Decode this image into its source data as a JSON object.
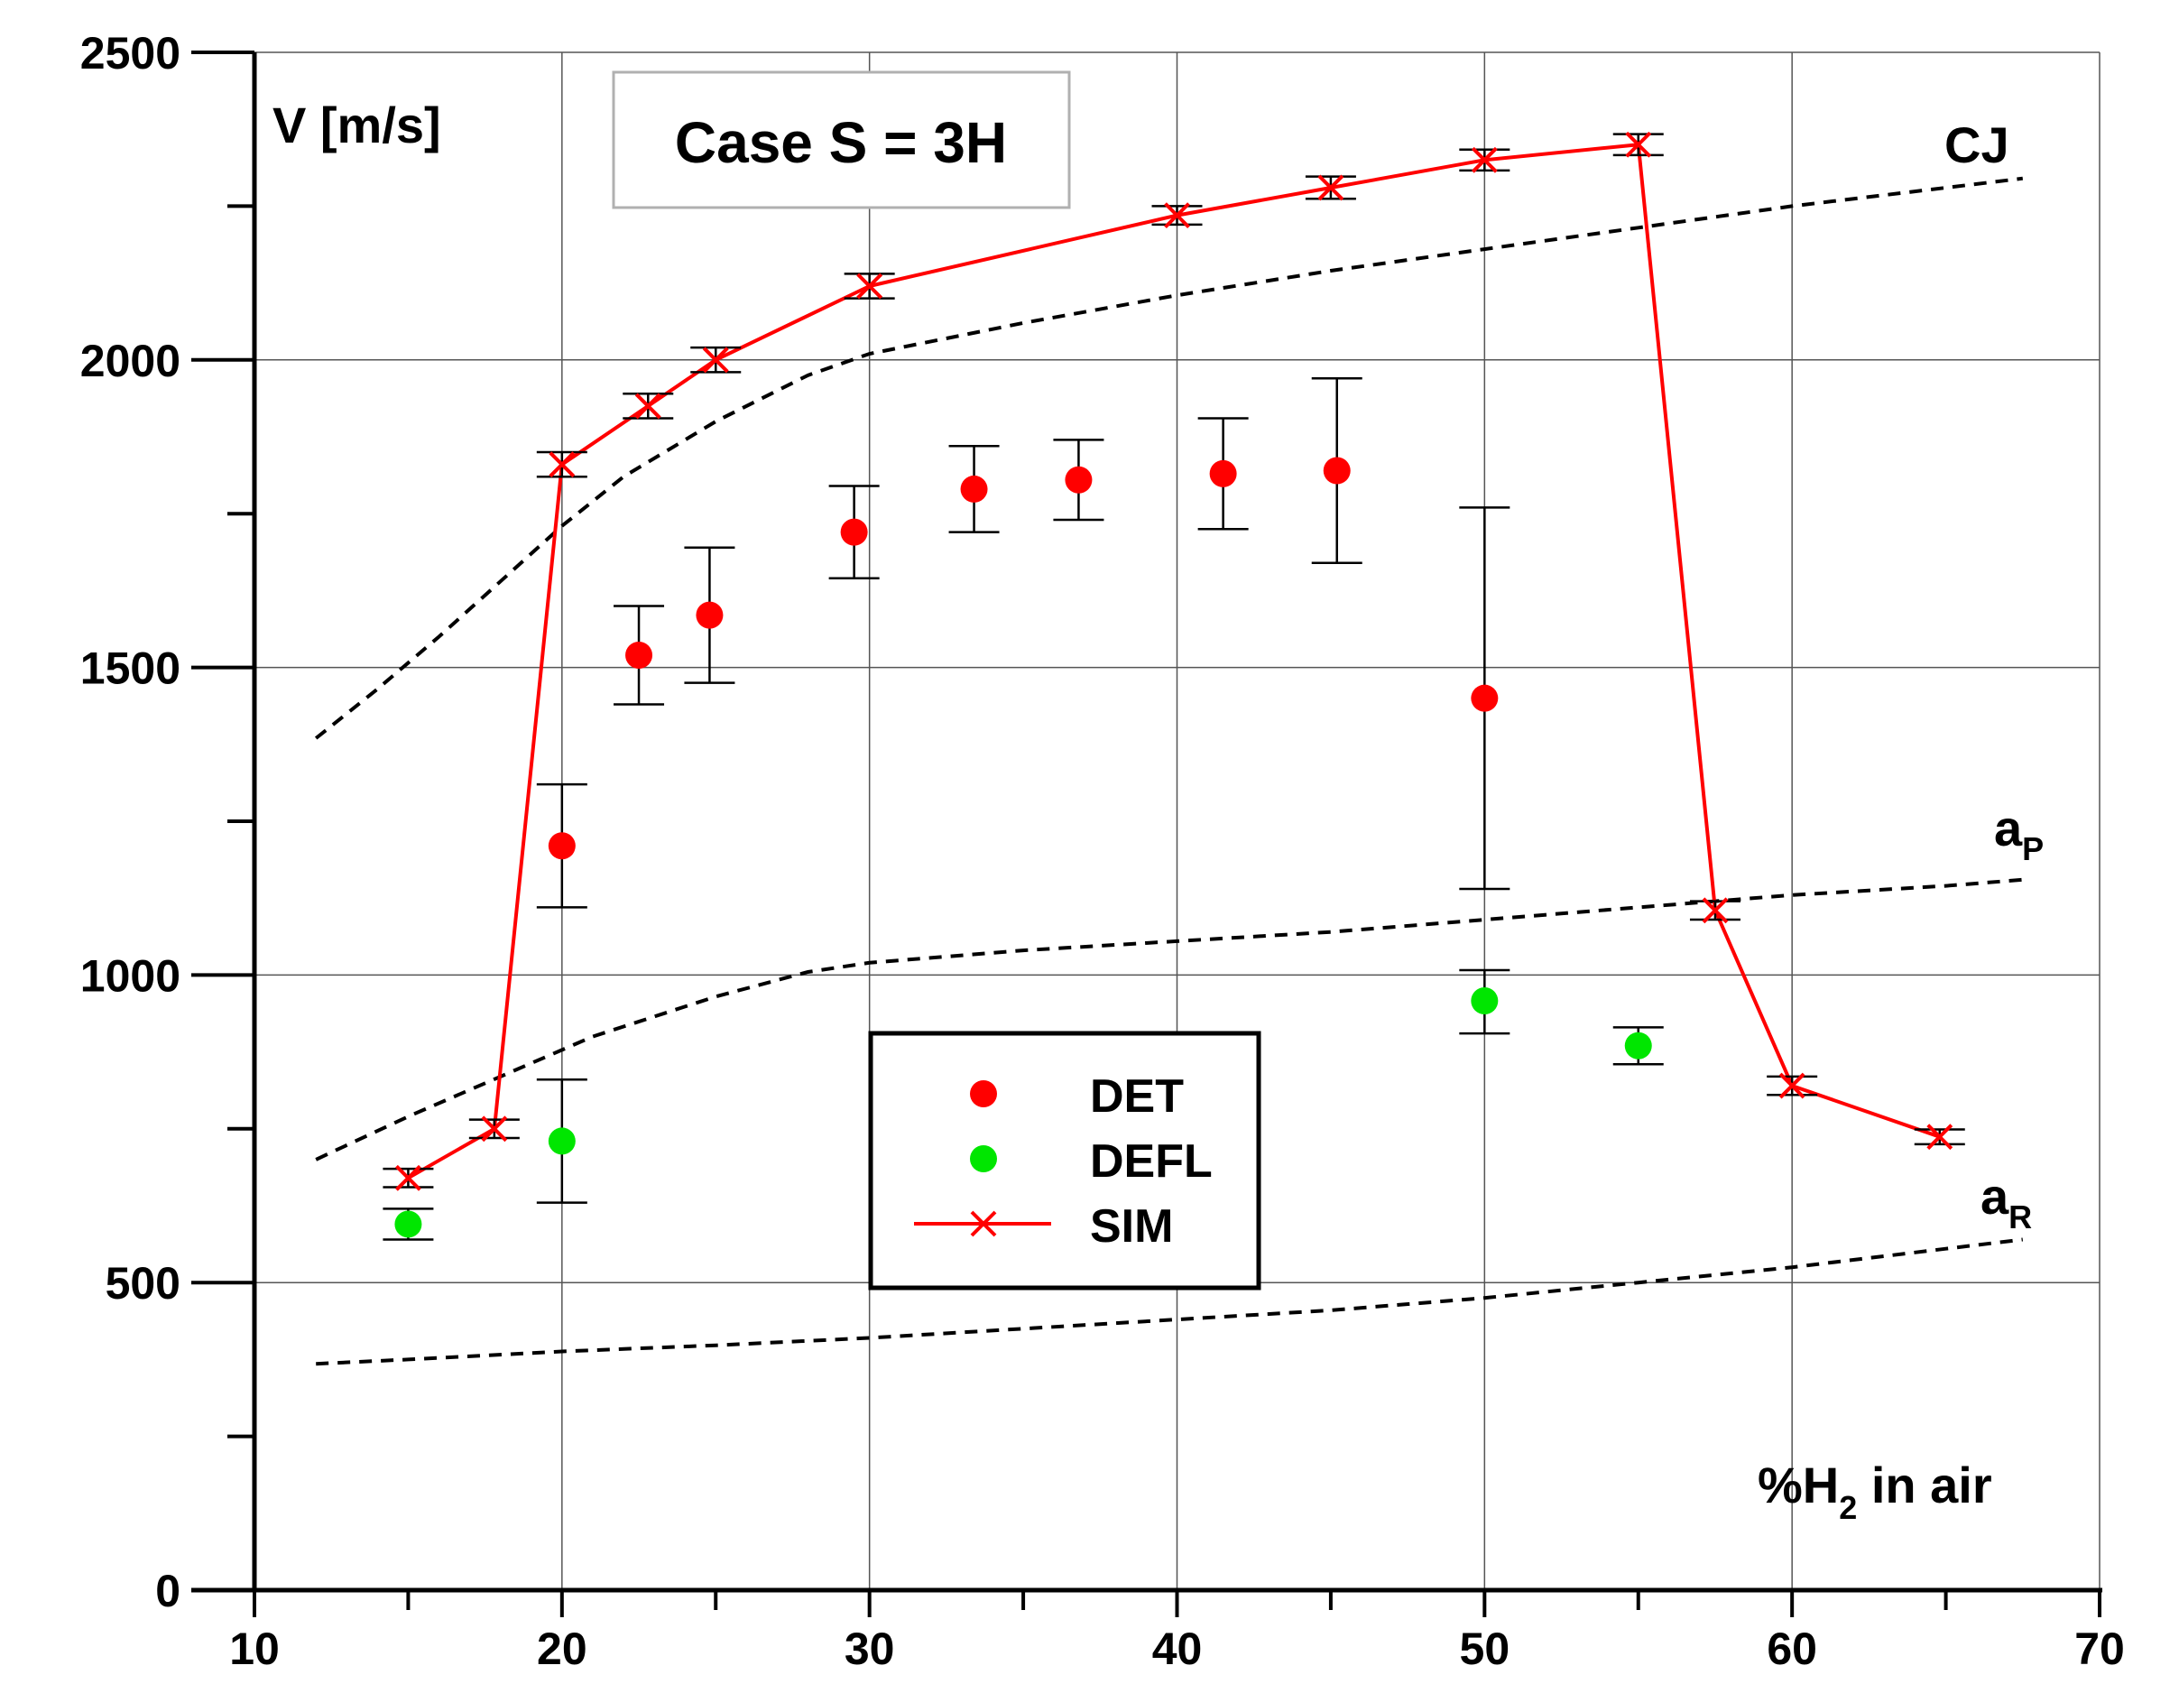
{
  "chart_data": {
    "type": "scatter",
    "title": "Case S = 3H",
    "ylabel": "V [m/s]",
    "xlabel": {
      "prefix": "%H",
      "subscript": "2",
      "suffix": " in air"
    },
    "xlim": [
      10,
      70
    ],
    "ylim": [
      0,
      2500
    ],
    "x_ticks": [
      10,
      20,
      30,
      40,
      50,
      60,
      70
    ],
    "y_ticks": [
      0,
      500,
      1000,
      1500,
      2000,
      2500
    ],
    "x_tick_labels": [
      "10",
      "20",
      "30",
      "40",
      "50",
      "60",
      "70"
    ],
    "y_tick_labels": [
      "0",
      "500",
      "1000",
      "1500",
      "2000",
      "2500"
    ],
    "grid": true,
    "colors": {
      "det": "#ff0000",
      "defl": "#00e600",
      "sim": "#ff0000",
      "reference": "#000000"
    },
    "legend": {
      "placement": "center",
      "entries": [
        {
          "label": "DET",
          "marker": "filled-circle",
          "color": "#ff0000"
        },
        {
          "label": "DEFL",
          "marker": "filled-circle",
          "color": "#00e600"
        },
        {
          "label": "SIM",
          "marker": "x-line",
          "color": "#ff0000"
        }
      ]
    },
    "series": [
      {
        "name": "DET",
        "points": [
          {
            "x": 20,
            "y": 1210,
            "low": 1110,
            "high": 1310
          },
          {
            "x": 22.5,
            "y": 1520,
            "low": 1440,
            "high": 1600
          },
          {
            "x": 24.8,
            "y": 1585,
            "low": 1475,
            "high": 1695
          },
          {
            "x": 29.5,
            "y": 1720,
            "low": 1645,
            "high": 1795
          },
          {
            "x": 33.4,
            "y": 1790,
            "low": 1720,
            "high": 1860
          },
          {
            "x": 36.8,
            "y": 1805,
            "low": 1740,
            "high": 1870
          },
          {
            "x": 41.5,
            "y": 1815,
            "low": 1725,
            "high": 1905
          },
          {
            "x": 45.2,
            "y": 1820,
            "low": 1670,
            "high": 1970
          },
          {
            "x": 50,
            "y": 1450,
            "low": 1140,
            "high": 1760
          }
        ]
      },
      {
        "name": "DEFL",
        "points": [
          {
            "x": 15,
            "y": 595,
            "low": 570,
            "high": 620
          },
          {
            "x": 20,
            "y": 730,
            "low": 630,
            "high": 830
          },
          {
            "x": 50,
            "y": 958,
            "low": 905,
            "high": 1008
          },
          {
            "x": 55,
            "y": 885,
            "low": 855,
            "high": 915
          }
        ]
      },
      {
        "name": "SIM",
        "points": [
          {
            "x": 15,
            "y": 670,
            "low": 655,
            "high": 685
          },
          {
            "x": 17.8,
            "y": 750,
            "low": 735,
            "high": 765
          },
          {
            "x": 20,
            "y": 1830,
            "low": 1810,
            "high": 1850
          },
          {
            "x": 22.8,
            "y": 1925,
            "low": 1905,
            "high": 1945
          },
          {
            "x": 25,
            "y": 2000,
            "low": 1980,
            "high": 2020
          },
          {
            "x": 30,
            "y": 2120,
            "low": 2100,
            "high": 2140
          },
          {
            "x": 40,
            "y": 2235,
            "low": 2220,
            "high": 2250
          },
          {
            "x": 45,
            "y": 2280,
            "low": 2262,
            "high": 2298
          },
          {
            "x": 50,
            "y": 2325,
            "low": 2308,
            "high": 2342
          },
          {
            "x": 55,
            "y": 2350,
            "low": 2333,
            "high": 2367
          },
          {
            "x": 57.5,
            "y": 1105,
            "low": 1090,
            "high": 1120
          },
          {
            "x": 60,
            "y": 820,
            "low": 805,
            "high": 835
          },
          {
            "x": 64.8,
            "y": 737,
            "low": 725,
            "high": 749
          }
        ]
      }
    ],
    "reference_curves": [
      {
        "name": "CJ",
        "label": "CJ",
        "points": [
          [
            12,
            1385
          ],
          [
            14,
            1465
          ],
          [
            16,
            1550
          ],
          [
            18,
            1640
          ],
          [
            20,
            1730
          ],
          [
            22,
            1810
          ],
          [
            25,
            1900
          ],
          [
            28,
            1975
          ],
          [
            30,
            2010
          ],
          [
            35,
            2060
          ],
          [
            40,
            2105
          ],
          [
            45,
            2145
          ],
          [
            50,
            2180
          ],
          [
            55,
            2215
          ],
          [
            60,
            2250
          ],
          [
            65,
            2280
          ],
          [
            67.5,
            2295
          ]
        ]
      },
      {
        "name": "aP",
        "label": {
          "text": "a",
          "subscript": "P"
        },
        "points": [
          [
            12,
            700
          ],
          [
            15,
            770
          ],
          [
            18,
            835
          ],
          [
            21,
            900
          ],
          [
            25,
            965
          ],
          [
            28,
            1005
          ],
          [
            30,
            1020
          ],
          [
            35,
            1040
          ],
          [
            40,
            1055
          ],
          [
            45,
            1070
          ],
          [
            50,
            1090
          ],
          [
            55,
            1110
          ],
          [
            60,
            1130
          ],
          [
            65,
            1145
          ],
          [
            67.5,
            1155
          ]
        ]
      },
      {
        "name": "aR",
        "label": {
          "text": "a",
          "subscript": "R"
        },
        "points": [
          [
            12,
            368
          ],
          [
            15,
            375
          ],
          [
            20,
            388
          ],
          [
            25,
            398
          ],
          [
            30,
            410
          ],
          [
            35,
            425
          ],
          [
            40,
            440
          ],
          [
            45,
            455
          ],
          [
            50,
            475
          ],
          [
            55,
            500
          ],
          [
            60,
            525
          ],
          [
            65,
            555
          ],
          [
            67.5,
            570
          ]
        ]
      }
    ]
  }
}
